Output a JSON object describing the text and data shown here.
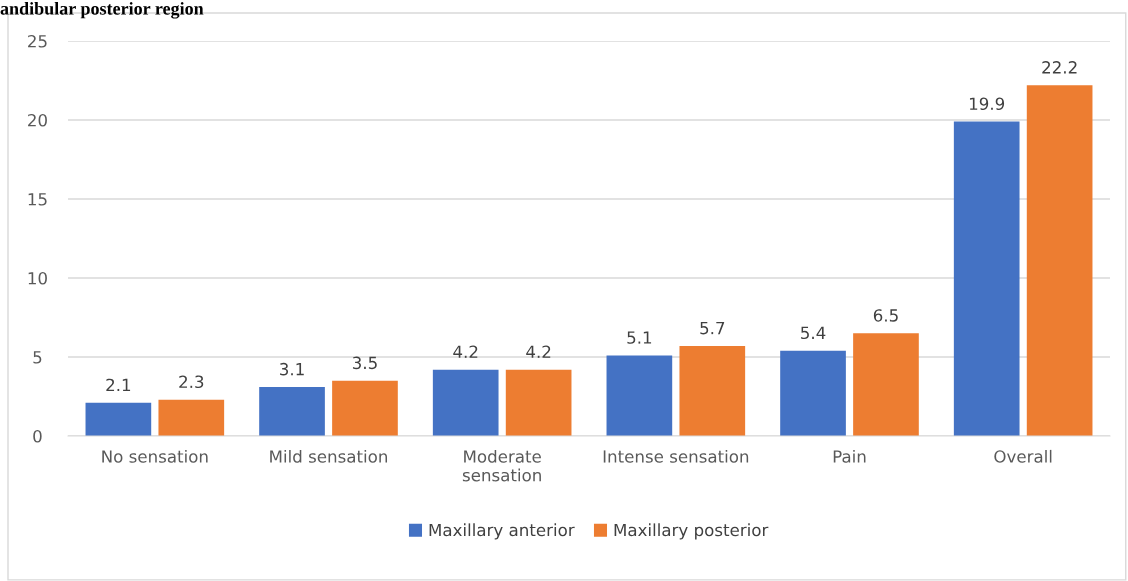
{
  "chart_data": {
    "type": "bar",
    "title": "andibular posterior region",
    "categories": [
      "No sensation",
      "Mild sensation",
      "Moderate\nsensation",
      "Intense sensation",
      "Pain",
      "Overall"
    ],
    "series": [
      {
        "name": "Maxillary anterior",
        "color": "#4472c4",
        "values": [
          2.1,
          3.1,
          4.2,
          5.1,
          5.4,
          19.9
        ]
      },
      {
        "name": "Maxillary posterior",
        "color": "#ed7d31",
        "values": [
          2.3,
          3.5,
          4.2,
          5.7,
          6.5,
          22.2
        ]
      }
    ],
    "ylim": [
      0,
      25
    ],
    "yticks": [
      0,
      5,
      10,
      15,
      20,
      25
    ],
    "grid": "y",
    "legend": "bottom",
    "data_labels": true
  }
}
